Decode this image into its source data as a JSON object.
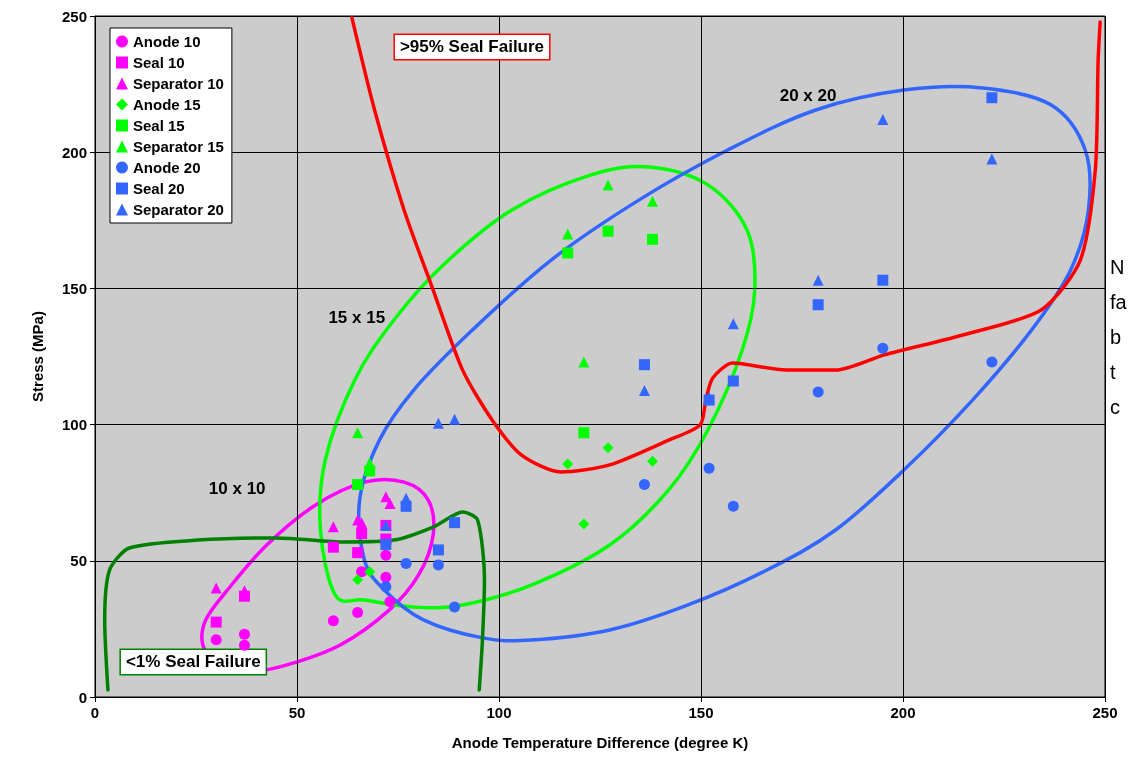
{
  "chart_data": {
    "type": "scatter",
    "xlabel": "Anode Temperature Difference (degree K)",
    "ylabel": "Stress (MPa)",
    "xlim": [
      0,
      250
    ],
    "xticks": [
      0,
      50,
      100,
      150,
      200,
      250
    ],
    "ylim": [
      0,
      250
    ],
    "yticks": [
      0,
      50,
      100,
      150,
      200,
      250
    ],
    "grid": true,
    "legend": "top left",
    "annotations": [
      "10 x 10",
      "15 x 15",
      "20 x 20",
      "N\nfa\nb\nt\nc"
    ],
    "series": [
      {
        "name": "Anode 10",
        "type": "scatter",
        "marker": "circle",
        "color": "#ff00ff",
        "x": [
          30,
          37,
          37,
          59,
          65,
          66,
          72,
          72,
          73
        ],
        "values": [
          21,
          23,
          19,
          28,
          31,
          46,
          52,
          44,
          35
        ]
      },
      {
        "name": "Seal 10",
        "type": "scatter",
        "marker": "square",
        "color": "#ff00ff",
        "x": [
          30,
          37,
          59,
          65,
          66,
          72,
          72
        ],
        "values": [
          27.5,
          37,
          55,
          53,
          60,
          63,
          58
        ]
      },
      {
        "name": "Separator 10",
        "type": "scatter",
        "marker": "triangle",
        "color": "#ff00ff",
        "x": [
          30,
          37,
          59,
          65,
          66,
          72,
          73
        ],
        "values": [
          40,
          39,
          62.5,
          65,
          64,
          73.5,
          71
        ]
      },
      {
        "name": "Anode 15",
        "type": "scatter",
        "marker": "diamond",
        "color": "#00ff00",
        "x": [
          65,
          68,
          117,
          121,
          127,
          138
        ],
        "values": [
          43,
          46,
          85.5,
          63.5,
          91.5,
          86.5
        ]
      },
      {
        "name": "Seal 15",
        "type": "scatter",
        "marker": "square",
        "color": "#00ff00",
        "x": [
          65,
          68,
          117,
          121,
          127,
          138
        ],
        "values": [
          78,
          83,
          163,
          97,
          171,
          168
        ]
      },
      {
        "name": "Separator 15",
        "type": "scatter",
        "marker": "triangle",
        "color": "#00ff00",
        "x": [
          65,
          68,
          117,
          121,
          127,
          138
        ],
        "values": [
          97,
          86,
          170,
          123,
          188,
          182
        ]
      },
      {
        "name": "Anode 20",
        "type": "scatter",
        "marker": "circle",
        "color": "#3366ff",
        "x": [
          72,
          77,
          85,
          89,
          136,
          152,
          158,
          179,
          195,
          222
        ],
        "values": [
          40.5,
          49,
          48.5,
          33,
          78,
          84,
          70,
          112,
          128,
          123
        ]
      },
      {
        "name": "Seal 20",
        "type": "scatter",
        "marker": "square",
        "color": "#3366ff",
        "x": [
          72,
          77,
          85,
          89,
          136,
          152,
          158,
          179,
          195,
          222
        ],
        "values": [
          56,
          70,
          54,
          64,
          122,
          109,
          116,
          144,
          153,
          220
        ]
      },
      {
        "name": "Separator 20",
        "type": "scatter",
        "marker": "triangle",
        "color": "#3366ff",
        "x": [
          72,
          77,
          85,
          89,
          136,
          152,
          158,
          179,
          195,
          222
        ],
        "values": [
          63,
          73,
          100.5,
          102,
          112.5,
          110,
          137,
          153,
          212,
          197.5
        ]
      },
      {
        "name": ">95% Seal Failure",
        "type": "line",
        "marker": "none",
        "line_style": "solid",
        "color": "#ff0000",
        "x": [
          63.6,
          69.2,
          76.5,
          83.7,
          91,
          98.3,
          105.6,
          115.3,
          127.4,
          142,
          149.8,
          151.2,
          152.9,
          157.8,
          171.1,
          183.3,
          195.4,
          214.8,
          234.2,
          243.9,
          247.6,
          248.3,
          248.8
        ],
        "values": [
          249.3,
          215.5,
          178.8,
          149.4,
          120,
          101.7,
          88.8,
          82.6,
          85.2,
          94.3,
          99.9,
          109,
          117.1,
          122.6,
          120,
          120,
          125.6,
          132.9,
          142.1,
          160.4,
          193.5,
          233.8,
          247.8
        ]
      },
      {
        "name": "<1% Seal Failure",
        "type": "line",
        "marker": "none",
        "line_style": "solid",
        "color": "#008000",
        "x": [
          3.2,
          2.4,
          3.6,
          8.5,
          25.5,
          44.9,
          61.9,
          74,
          83.7,
          91,
          94.7,
          96.4,
          95.9,
          95.1
        ],
        "values": [
          2.6,
          28.3,
          46.6,
          54.7,
          57.6,
          58.4,
          56.9,
          57.6,
          62.4,
          67.9,
          65,
          43,
          20.9,
          2.6
        ]
      }
    ]
  }
}
